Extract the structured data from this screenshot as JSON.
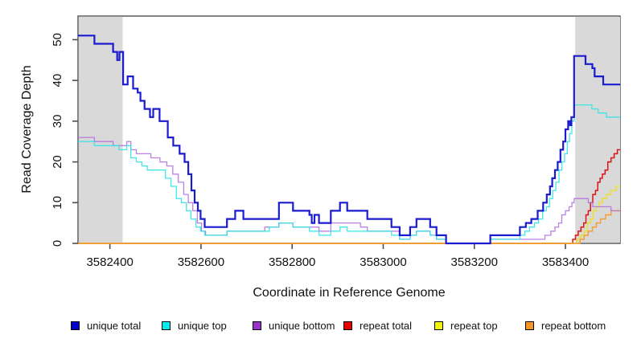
{
  "figure": {
    "y_axis_title": "Read Coverage Depth",
    "x_axis_title": "Coordinate in Reference Genome"
  },
  "chart_data": {
    "type": "line",
    "line_style": "step-after",
    "title": "",
    "xlabel": "Coordinate in Reference Genome",
    "ylabel": "Read Coverage Depth",
    "xlim": [
      3582330,
      3583520
    ],
    "ylim": [
      0,
      55.8
    ],
    "xticks": [
      3582400,
      3582600,
      3582800,
      3583000,
      3583200,
      3583400
    ],
    "yticks": [
      0,
      10,
      20,
      30,
      40,
      50
    ],
    "grid": false,
    "axis_color": "#4D4D4D",
    "background": "#FFFFFF",
    "shaded_regions": [
      {
        "x0": 3582330,
        "x1": 3582428,
        "color": "#D9D9D9"
      },
      {
        "x0": 3583420,
        "x1": 3583520,
        "color": "#D9D9D9"
      }
    ],
    "legend_position": "bottom",
    "series": [
      {
        "name": "unique total",
        "color": "#1A1ACF",
        "legend_color": "#0000CD",
        "width": 2.2,
        "opacity": 1,
        "points": [
          [
            3582330,
            51
          ],
          [
            3582366,
            49
          ],
          [
            3582407,
            47
          ],
          [
            3582416,
            45
          ],
          [
            3582421,
            47
          ],
          [
            3582429,
            39
          ],
          [
            3582439,
            41
          ],
          [
            3582451,
            38
          ],
          [
            3582461,
            37
          ],
          [
            3582467,
            35
          ],
          [
            3582476,
            33
          ],
          [
            3582488,
            31
          ],
          [
            3582495,
            33
          ],
          [
            3582509,
            30
          ],
          [
            3582527,
            26
          ],
          [
            3582539,
            24
          ],
          [
            3582553,
            22
          ],
          [
            3582564,
            20
          ],
          [
            3582572,
            17
          ],
          [
            3582579,
            13
          ],
          [
            3582586,
            10
          ],
          [
            3582593,
            8
          ],
          [
            3582599,
            6
          ],
          [
            3582608,
            4
          ],
          [
            3582657,
            6
          ],
          [
            3582675,
            8
          ],
          [
            3582693,
            6
          ],
          [
            3582771,
            10
          ],
          [
            3582802,
            8
          ],
          [
            3582838,
            7
          ],
          [
            3582843,
            5
          ],
          [
            3582849,
            7
          ],
          [
            3582859,
            5
          ],
          [
            3582885,
            8
          ],
          [
            3582905,
            10
          ],
          [
            3582921,
            8
          ],
          [
            3582965,
            6
          ],
          [
            3583018,
            4
          ],
          [
            3583036,
            2
          ],
          [
            3583059,
            4
          ],
          [
            3583073,
            6
          ],
          [
            3583103,
            4
          ],
          [
            3583117,
            2
          ],
          [
            3583138,
            0
          ],
          [
            3583235,
            2
          ],
          [
            3583300,
            4
          ],
          [
            3583313,
            5
          ],
          [
            3583325,
            6
          ],
          [
            3583339,
            8
          ],
          [
            3583351,
            10
          ],
          [
            3583359,
            12
          ],
          [
            3583366,
            14
          ],
          [
            3583371,
            16
          ],
          [
            3583377,
            18
          ],
          [
            3583383,
            20
          ],
          [
            3583389,
            23
          ],
          [
            3583395,
            25
          ],
          [
            3583400,
            28
          ],
          [
            3583406,
            30
          ],
          [
            3583410,
            29
          ],
          [
            3583413,
            31
          ],
          [
            3583419,
            46
          ],
          [
            3583444,
            44
          ],
          [
            3583459,
            43
          ],
          [
            3583464,
            41
          ],
          [
            3583483,
            39
          ]
        ]
      },
      {
        "name": "unique top",
        "color": "#2EE4E4",
        "legend_color": "#00EEEE",
        "width": 1.3,
        "opacity": 0.9,
        "points": [
          [
            3582330,
            25
          ],
          [
            3582366,
            24
          ],
          [
            3582420,
            23
          ],
          [
            3582437,
            24
          ],
          [
            3582446,
            21
          ],
          [
            3582458,
            20
          ],
          [
            3582470,
            19
          ],
          [
            3582482,
            18
          ],
          [
            3582522,
            16
          ],
          [
            3582534,
            14
          ],
          [
            3582546,
            11
          ],
          [
            3582557,
            10
          ],
          [
            3582568,
            8
          ],
          [
            3582578,
            6
          ],
          [
            3582589,
            4
          ],
          [
            3582599,
            3
          ],
          [
            3582608,
            2
          ],
          [
            3582657,
            3
          ],
          [
            3582750,
            4
          ],
          [
            3582771,
            5
          ],
          [
            3582802,
            4
          ],
          [
            3582838,
            3
          ],
          [
            3582859,
            2
          ],
          [
            3582885,
            3
          ],
          [
            3582905,
            4
          ],
          [
            3582921,
            3
          ],
          [
            3583018,
            2
          ],
          [
            3583036,
            1
          ],
          [
            3583059,
            2
          ],
          [
            3583073,
            3
          ],
          [
            3583103,
            2
          ],
          [
            3583117,
            1
          ],
          [
            3583138,
            0
          ],
          [
            3583235,
            1
          ],
          [
            3583300,
            2
          ],
          [
            3583311,
            3
          ],
          [
            3583321,
            4
          ],
          [
            3583332,
            5
          ],
          [
            3583341,
            6
          ],
          [
            3583350,
            8
          ],
          [
            3583358,
            9
          ],
          [
            3583365,
            11
          ],
          [
            3583372,
            13
          ],
          [
            3583379,
            15
          ],
          [
            3583386,
            18
          ],
          [
            3583392,
            20
          ],
          [
            3583398,
            22
          ],
          [
            3583404,
            25
          ],
          [
            3583409,
            27
          ],
          [
            3583414,
            30
          ],
          [
            3583419,
            34
          ],
          [
            3583458,
            33
          ],
          [
            3583472,
            32
          ],
          [
            3583490,
            31
          ]
        ]
      },
      {
        "name": "unique bottom",
        "color": "#B06BE0",
        "legend_color": "#9932CC",
        "width": 1.3,
        "opacity": 0.85,
        "points": [
          [
            3582330,
            26
          ],
          [
            3582366,
            25
          ],
          [
            3582407,
            24
          ],
          [
            3582437,
            25
          ],
          [
            3582446,
            23
          ],
          [
            3582458,
            22
          ],
          [
            3582490,
            21
          ],
          [
            3582510,
            20
          ],
          [
            3582525,
            19
          ],
          [
            3582538,
            17
          ],
          [
            3582550,
            15
          ],
          [
            3582562,
            12
          ],
          [
            3582572,
            10
          ],
          [
            3582582,
            8
          ],
          [
            3582592,
            5
          ],
          [
            3582601,
            3
          ],
          [
            3582610,
            2
          ],
          [
            3582657,
            3
          ],
          [
            3582740,
            4
          ],
          [
            3582771,
            5
          ],
          [
            3582802,
            4
          ],
          [
            3582859,
            3
          ],
          [
            3582885,
            5
          ],
          [
            3582950,
            4
          ],
          [
            3582965,
            3
          ],
          [
            3583036,
            1
          ],
          [
            3583059,
            2
          ],
          [
            3583073,
            3
          ],
          [
            3583103,
            2
          ],
          [
            3583117,
            1
          ],
          [
            3583138,
            0
          ],
          [
            3583235,
            1
          ],
          [
            3583355,
            2
          ],
          [
            3583368,
            3
          ],
          [
            3583377,
            4
          ],
          [
            3583385,
            5
          ],
          [
            3583392,
            7
          ],
          [
            3583400,
            8
          ],
          [
            3583408,
            9
          ],
          [
            3583414,
            10
          ],
          [
            3583419,
            11
          ],
          [
            3583450,
            10
          ],
          [
            3583460,
            9
          ],
          [
            3583500,
            8
          ]
        ]
      },
      {
        "name": "repeat total",
        "color": "#DC1414",
        "legend_color": "#E60000",
        "width": 1.5,
        "opacity": 1,
        "points": [
          [
            3582330,
            0
          ],
          [
            3583416,
            1
          ],
          [
            3583422,
            2
          ],
          [
            3583428,
            3
          ],
          [
            3583434,
            4
          ],
          [
            3583440,
            5
          ],
          [
            3583445,
            7
          ],
          [
            3583450,
            8
          ],
          [
            3583455,
            10
          ],
          [
            3583460,
            12
          ],
          [
            3583466,
            13
          ],
          [
            3583471,
            15
          ],
          [
            3583476,
            16
          ],
          [
            3583481,
            17
          ],
          [
            3583487,
            18
          ],
          [
            3583493,
            20
          ],
          [
            3583500,
            21
          ],
          [
            3583507,
            22
          ],
          [
            3583514,
            23
          ]
        ]
      },
      {
        "name": "repeat top",
        "color": "#EFE020",
        "legend_color": "#F5F500",
        "width": 1.4,
        "opacity": 1,
        "points": [
          [
            3582330,
            0
          ],
          [
            3583425,
            1
          ],
          [
            3583433,
            2
          ],
          [
            3583441,
            3
          ],
          [
            3583448,
            5
          ],
          [
            3583455,
            6
          ],
          [
            3583461,
            8
          ],
          [
            3583468,
            9
          ],
          [
            3583474,
            10
          ],
          [
            3583481,
            11
          ],
          [
            3583490,
            12
          ],
          [
            3583500,
            13
          ],
          [
            3583511,
            14
          ]
        ]
      },
      {
        "name": "repeat bottom",
        "color": "#F59B30",
        "legend_color": "#F59622",
        "width": 1.4,
        "opacity": 1,
        "points": [
          [
            3582330,
            0
          ],
          [
            3583432,
            1
          ],
          [
            3583441,
            2
          ],
          [
            3583450,
            3
          ],
          [
            3583459,
            4
          ],
          [
            3583468,
            5
          ],
          [
            3583477,
            6
          ],
          [
            3583488,
            7
          ],
          [
            3583500,
            8
          ]
        ]
      }
    ]
  },
  "legend": {
    "items": [
      {
        "label": "unique total",
        "color": "#0000CD"
      },
      {
        "label": "unique top",
        "color": "#00EEEE"
      },
      {
        "label": "unique bottom",
        "color": "#9932CC"
      },
      {
        "label": "repeat total",
        "color": "#E60000"
      },
      {
        "label": "repeat top",
        "color": "#F5F500"
      },
      {
        "label": "repeat bottom",
        "color": "#F59622"
      }
    ]
  }
}
